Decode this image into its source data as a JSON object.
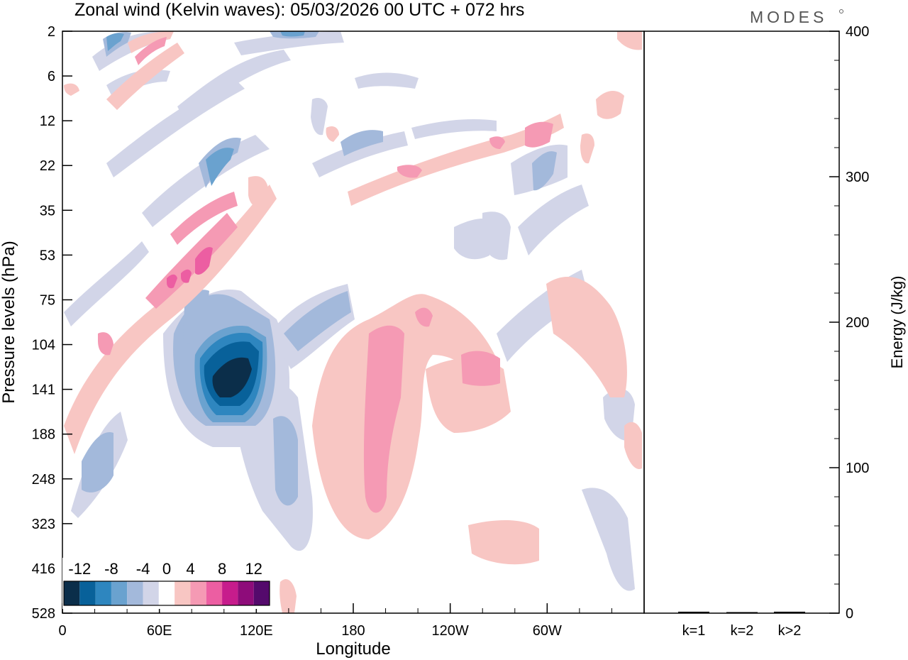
{
  "title": "Zonal wind (Kelvin waves):  05/03/2026  00 UTC  + 072 hrs",
  "logo": "MODES",
  "chart_data": [
    {
      "type": "heatmap",
      "name": "zonal-wind-kelvin-hovmoller",
      "xlabel": "Longitude",
      "ylabel": "Pressure levels (hPa)",
      "x_ticks": [
        "0",
        "60E",
        "120E",
        "180",
        "120W",
        "60W"
      ],
      "x_tick_values": [
        0,
        60,
        120,
        180,
        240,
        300
      ],
      "xlim": [
        0,
        360
      ],
      "y_ticks": [
        "2",
        "6",
        "12",
        "22",
        "35",
        "53",
        "75",
        "104",
        "141",
        "188",
        "248",
        "323",
        "416",
        "528"
      ],
      "colorbar": {
        "labels": [
          "-12",
          "-8",
          "-4",
          "0",
          "4",
          "8",
          "12"
        ],
        "levels": [
          -14,
          -12,
          -10,
          -8,
          -6,
          -4,
          -2,
          2,
          4,
          6,
          8,
          10,
          12,
          14
        ],
        "colors": [
          "#0b2e4a",
          "#08619a",
          "#2e86bf",
          "#6aa2cf",
          "#a3b9db",
          "#d2d5e8",
          "#ffffff",
          "#f8c6c3",
          "#f59ab4",
          "#ec5ea2",
          "#c71c8c",
          "#8e0c7a",
          "#540a6c"
        ]
      },
      "features": [
        {
          "lon": 110,
          "level": "141",
          "value": -13
        },
        {
          "lon": 116,
          "level": "116",
          "value": -12
        },
        {
          "lon": 80,
          "level": "104",
          "value": -5
        },
        {
          "lon": 38,
          "level": "248",
          "value": -6
        },
        {
          "lon": 140,
          "level": "248",
          "value": -5
        },
        {
          "lon": 90,
          "level": "53",
          "value": 9
        },
        {
          "lon": 200,
          "level": "141",
          "value": 6
        },
        {
          "lon": 250,
          "level": "104",
          "value": 6
        },
        {
          "lon": 195,
          "level": "248",
          "value": 6
        },
        {
          "lon": 290,
          "level": "12",
          "value": 6
        },
        {
          "lon": 50,
          "level": "2",
          "value": -5
        },
        {
          "lon": 300,
          "level": "22",
          "value": -5
        }
      ]
    },
    {
      "type": "bar",
      "name": "energy-by-wavenumber",
      "categories": [
        "k=1",
        "k=2",
        "k>2"
      ],
      "values": [
        1,
        0.5,
        1
      ],
      "ylabel": "Energy (J/kg)",
      "ylim": [
        0,
        400
      ],
      "y_ticks": [
        "0",
        "100",
        "200",
        "300",
        "400"
      ],
      "y_tick_values": [
        0,
        100,
        200,
        300,
        400
      ]
    }
  ]
}
